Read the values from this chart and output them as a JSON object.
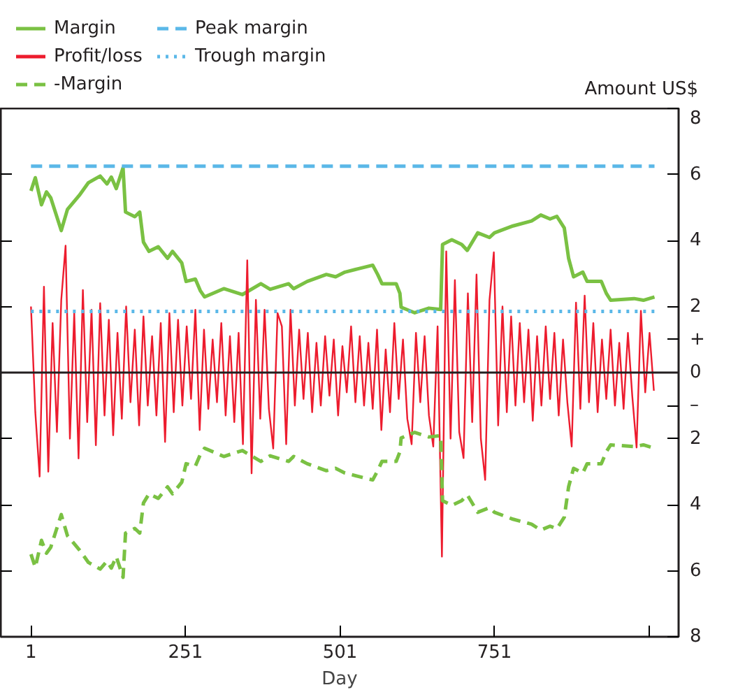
{
  "chart_data": {
    "type": "line",
    "xlabel": "Day",
    "ylabel": "Amount US$",
    "xlim": [
      -48,
      1049
    ],
    "ylim": [
      -8,
      8
    ],
    "xticks": [
      1,
      251,
      501,
      751,
      {
        "value": 1001,
        "label": null
      }
    ],
    "yticks": [
      8,
      6,
      4,
      2,
      {
        "value": 1,
        "label": "+"
      },
      0,
      {
        "value": -1,
        "label": "–"
      },
      {
        "value": -2,
        "label": "2"
      },
      {
        "value": -4,
        "label": "4"
      },
      {
        "value": -6,
        "label": "6"
      },
      {
        "value": -8,
        "label": "8"
      }
    ],
    "grid": false,
    "legend": "top",
    "marker": "none",
    "ref_lines": [
      {
        "axis": "y",
        "value": 0,
        "color": "#231f20"
      }
    ],
    "series": [
      {
        "name": "Margin",
        "color": "#7ac143",
        "line_style": "solid",
        "x": [
          1,
          8,
          18,
          26,
          33,
          50,
          60,
          79,
          94,
          113,
          124,
          131,
          139,
          150,
          154,
          169,
          177,
          183,
          192,
          207,
          222,
          230,
          245,
          252,
          267,
          275,
          282,
          313,
          343,
          373,
          388,
          418,
          426,
          448,
          479,
          494,
          509,
          530,
          554,
          562,
          569,
          592,
          598,
          600,
          622,
          645,
          664,
          667,
          682,
          698,
          707,
          724,
          743,
          751,
          781,
          811,
          826,
          841,
          852,
          864,
          871,
          879,
          894,
          901,
          924,
          932,
          939,
          977,
          992,
          1010
        ],
        "values": [
          5.5,
          5.9,
          5.08,
          5.47,
          5.29,
          4.3,
          4.94,
          5.36,
          5.75,
          5.95,
          5.71,
          5.92,
          5.57,
          6.2,
          4.86,
          4.72,
          4.86,
          3.95,
          3.67,
          3.81,
          3.46,
          3.67,
          3.32,
          2.76,
          2.83,
          2.48,
          2.29,
          2.54,
          2.36,
          2.69,
          2.52,
          2.69,
          2.54,
          2.76,
          2.97,
          2.9,
          3.04,
          3.14,
          3.25,
          2.97,
          2.69,
          2.69,
          2.4,
          1.98,
          1.81,
          1.95,
          1.91,
          3.88,
          4.02,
          3.88,
          3.7,
          4.23,
          4.09,
          4.23,
          4.44,
          4.59,
          4.77,
          4.65,
          4.73,
          4.38,
          3.46,
          2.9,
          3.04,
          2.76,
          2.76,
          2.4,
          2.19,
          2.24,
          2.19,
          2.29
        ]
      },
      {
        "name": "Profit/loss",
        "color": "#ed1c2e",
        "line_style": "solid",
        "x": [
          1,
          8,
          15,
          22,
          29,
          36,
          43,
          50,
          57,
          64,
          71,
          78,
          85,
          92,
          99,
          106,
          113,
          120,
          127,
          134,
          141,
          148,
          155,
          162,
          169,
          176,
          183,
          190,
          197,
          204,
          211,
          218,
          225,
          232,
          239,
          246,
          253,
          260,
          267,
          274,
          281,
          288,
          295,
          302,
          309,
          316,
          323,
          330,
          337,
          344,
          351,
          358,
          365,
          372,
          379,
          386,
          393,
          400,
          407,
          414,
          421,
          428,
          435,
          442,
          449,
          456,
          463,
          470,
          477,
          484,
          491,
          498,
          505,
          512,
          519,
          526,
          533,
          540,
          547,
          554,
          561,
          568,
          575,
          582,
          589,
          596,
          603,
          610,
          617,
          624,
          631,
          638,
          645,
          652,
          659,
          666,
          673,
          680,
          687,
          694,
          701,
          708,
          715,
          722,
          729,
          736,
          743,
          750,
          757,
          764,
          771,
          778,
          785,
          792,
          799,
          806,
          813,
          820,
          827,
          834,
          841,
          848,
          855,
          862,
          869,
          876,
          883,
          890,
          897,
          904,
          911,
          918,
          925,
          932,
          939,
          946,
          953,
          960,
          967,
          974,
          981,
          988,
          995,
          1002,
          1009
        ],
        "values": [
          2.0,
          -1.2,
          -3.15,
          2.6,
          -3.0,
          1.5,
          -1.8,
          2.2,
          3.84,
          -2.0,
          1.8,
          -2.6,
          2.5,
          -1.5,
          1.9,
          -2.2,
          2.1,
          -1.3,
          1.6,
          -1.9,
          1.2,
          -1.4,
          2.0,
          -0.9,
          1.3,
          -1.6,
          1.7,
          -1.0,
          1.1,
          -1.3,
          1.5,
          -2.1,
          1.8,
          -1.2,
          1.6,
          -1.0,
          1.4,
          -0.8,
          1.9,
          -1.74,
          1.3,
          -1.1,
          1.0,
          -0.9,
          1.5,
          -1.3,
          1.1,
          -1.5,
          1.2,
          -2.17,
          3.4,
          -3.05,
          2.2,
          -1.4,
          1.9,
          -1.1,
          -2.3,
          1.8,
          1.4,
          -2.17,
          1.9,
          -1.0,
          1.3,
          -0.8,
          1.2,
          -1.2,
          0.9,
          -1.0,
          1.1,
          -0.7,
          1.0,
          -1.3,
          0.8,
          -0.6,
          1.4,
          -0.9,
          1.1,
          -1.0,
          0.9,
          -1.1,
          1.3,
          -1.74,
          0.7,
          -1.2,
          1.5,
          -0.8,
          1.0,
          -1.4,
          -2.17,
          1.2,
          -0.9,
          1.1,
          -1.3,
          -2.24,
          1.4,
          -5.57,
          3.67,
          -2.0,
          2.8,
          -1.8,
          -2.59,
          2.4,
          -1.5,
          2.97,
          -2.0,
          -3.25,
          2.2,
          3.64,
          -1.6,
          2.0,
          -1.2,
          1.7,
          -1.0,
          1.5,
          -0.9,
          1.3,
          -1.46,
          1.1,
          -1.0,
          1.4,
          -0.8,
          1.2,
          -1.3,
          1.0,
          -0.9,
          -2.24,
          2.12,
          -1.1,
          2.33,
          -0.9,
          1.5,
          -1.2,
          1.0,
          -0.8,
          1.3,
          -1.0,
          0.9,
          -1.1,
          1.2,
          -0.7,
          -2.27,
          1.87,
          -0.6,
          1.2,
          -0.55
        ]
      },
      {
        "name": "-Margin",
        "color": "#7ac143",
        "line_style": "dashed",
        "x": [
          1,
          8,
          18,
          26,
          33,
          50,
          60,
          79,
          94,
          113,
          124,
          131,
          139,
          150,
          154,
          169,
          177,
          183,
          192,
          207,
          222,
          230,
          245,
          252,
          267,
          275,
          282,
          313,
          343,
          373,
          388,
          418,
          426,
          448,
          479,
          494,
          509,
          530,
          554,
          562,
          569,
          592,
          598,
          600,
          622,
          645,
          664,
          667,
          682,
          698,
          707,
          724,
          743,
          751,
          781,
          811,
          826,
          841,
          852,
          864,
          871,
          879,
          894,
          901,
          924,
          932,
          939,
          977,
          992,
          1010
        ],
        "values": [
          -5.5,
          -5.9,
          -5.08,
          -5.47,
          -5.29,
          -4.3,
          -4.94,
          -5.36,
          -5.75,
          -5.95,
          -5.71,
          -5.92,
          -5.57,
          -6.2,
          -4.86,
          -4.72,
          -4.86,
          -3.95,
          -3.67,
          -3.81,
          -3.46,
          -3.67,
          -3.32,
          -2.76,
          -2.83,
          -2.48,
          -2.29,
          -2.54,
          -2.36,
          -2.69,
          -2.52,
          -2.69,
          -2.54,
          -2.76,
          -2.97,
          -2.9,
          -3.04,
          -3.14,
          -3.25,
          -2.97,
          -2.69,
          -2.69,
          -2.4,
          -1.98,
          -1.81,
          -1.95,
          -1.91,
          -3.88,
          -4.02,
          -3.88,
          -3.7,
          -4.23,
          -4.09,
          -4.23,
          -4.44,
          -4.59,
          -4.77,
          -4.65,
          -4.73,
          -4.38,
          -3.46,
          -2.9,
          -3.04,
          -2.76,
          -2.76,
          -2.4,
          -2.19,
          -2.24,
          -2.19,
          -2.29
        ]
      },
      {
        "name": "Peak margin",
        "color": "#5bb8e8",
        "line_style": "dashed",
        "x": [
          1,
          1010
        ],
        "values": [
          6.25,
          6.25
        ]
      },
      {
        "name": "Trough margin",
        "color": "#5bb8e8",
        "line_style": "dotted",
        "x": [
          1,
          1010
        ],
        "values": [
          1.85,
          1.85
        ]
      }
    ]
  }
}
